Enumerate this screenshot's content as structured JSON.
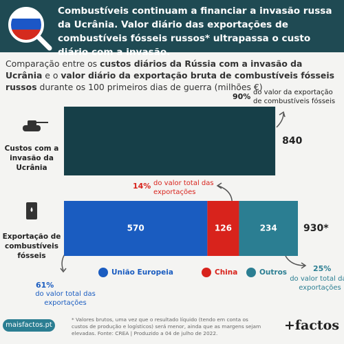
{
  "header": {
    "title": "Combustíveis continuam a financiar a invasão russa da Ucrânia. Valor diário das exportações de combustíveis fósseis russos* ultrapassa o custo diário com a invasão."
  },
  "chart_data": {
    "type": "stacked-bar",
    "orientation": "horizontal",
    "subtitle": [
      {
        "text": "Comparação entre os ",
        "bold": false
      },
      {
        "text": "custos diários da Rússia com a invasão da Ucrânia",
        "bold": true
      },
      {
        "text": " e o ",
        "bold": false
      },
      {
        "text": "valor diário da exportação bruta de combustíveis fósseis russos",
        "bold": true
      },
      {
        "text": " durante os 100 primeiros dias de guerra (milhões €)",
        "bold": false
      }
    ],
    "categories": [
      "Custos com a invasão da Ucrânia",
      "Exportação de combustíveis fósseis"
    ],
    "series": [
      {
        "color": "#163f48",
        "values": [
          840,
          null
        ]
      },
      {
        "name": "União Europeia",
        "color": "#1a5cc0",
        "values": [
          null,
          570
        ]
      },
      {
        "name": "China",
        "color": "#d8231c",
        "values": [
          null,
          126
        ]
      },
      {
        "name": "Outros",
        "color": "#2b7e92",
        "values": [
          null,
          234
        ]
      }
    ],
    "inside_labels": [
      false,
      true
    ],
    "totals": [
      840,
      {
        "value": 930,
        "label": "930*"
      }
    ],
    "annotations": [
      {
        "percent": {
          "value": 90,
          "label": "90%"
        },
        "text": "do valor da exportação de combustíveis fósseis",
        "color": "#222222"
      },
      {
        "percent": {
          "value": 14,
          "label": "14%"
        },
        "text": "do valor total das exportações",
        "color": "#d8231c"
      },
      {
        "percent": {
          "value": 61,
          "label": "61%"
        },
        "text": "do valor total das exportações",
        "color": "#1a5cc0"
      },
      {
        "percent": {
          "value": 25,
          "label": "25%"
        },
        "text": "do valor total das exportações",
        "color": "#2b7e92"
      }
    ]
  },
  "footer": {
    "note": "* Valores brutos, uma vez que o resultado líquido (tendo em conta os custos de produção e logísticos) será menor, ainda que as margens sejam elevadas. Fonte: CREA | Produzido a 04 de julho de 2022.",
    "site": "maisfactos.pt",
    "brand": "+factos"
  }
}
